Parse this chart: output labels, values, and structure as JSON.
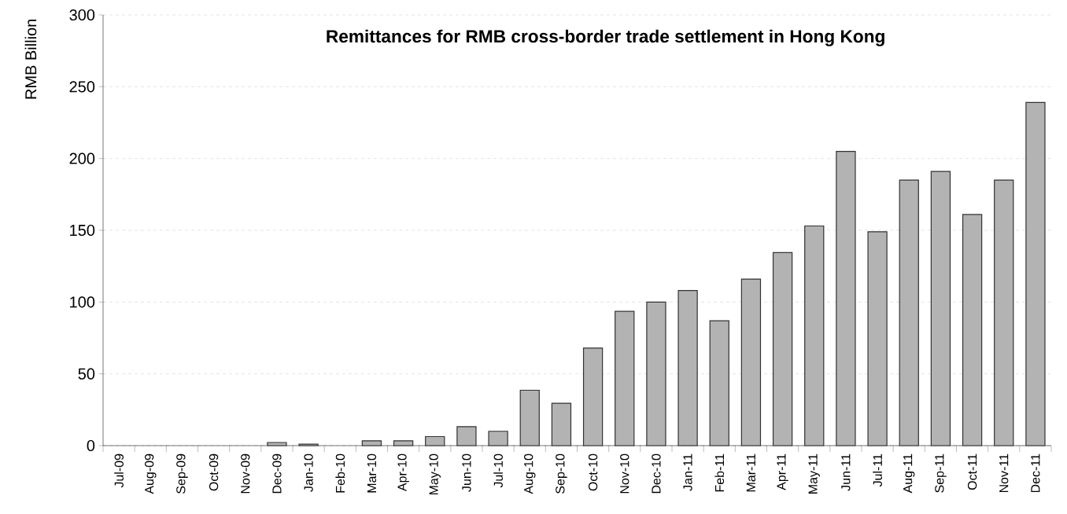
{
  "chart_data": {
    "type": "bar",
    "title": "Remittances for RMB cross-border trade settlement in Hong Kong",
    "ylabel": "RMB Billion",
    "categories": [
      "Jul-09",
      "Aug-09",
      "Sep-09",
      "Oct-09",
      "Nov-09",
      "Dec-09",
      "Jan-10",
      "Feb-10",
      "Mar-10",
      "Apr-10",
      "May-10",
      "Jun-10",
      "Jul-10",
      "Aug-10",
      "Sep-10",
      "Oct-10",
      "Nov-10",
      "Dec-10",
      "Jan-11",
      "Feb-11",
      "Mar-11",
      "Apr-11",
      "May-11",
      "Jun-11",
      "Jul-11",
      "Aug-11",
      "Sep-11",
      "Oct-11",
      "Nov-11",
      "Dec-11"
    ],
    "values": [
      null,
      null,
      null,
      null,
      null,
      2.2,
      1,
      null,
      3.4,
      3.4,
      6.3,
      13.2,
      10,
      38.6,
      29.5,
      68,
      93.5,
      100,
      108,
      87,
      116,
      134.5,
      153,
      205,
      149,
      185,
      191,
      161,
      185,
      239
    ],
    "color": "#b3b3b3",
    "ylim": [
      0,
      300
    ],
    "yticks": [
      0,
      50,
      100,
      150,
      200,
      250,
      300
    ],
    "grid": "y"
  }
}
